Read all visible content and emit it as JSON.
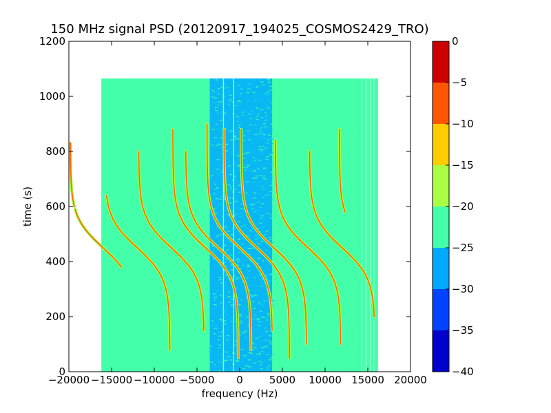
{
  "chart_data": {
    "type": "heatmap",
    "title": "150 MHz signal PSD (20120917_194025_COSMOS2429_TRO)",
    "xlabel": "frequency (Hz)",
    "ylabel": "time (s)",
    "xlim": [
      -20000,
      20000
    ],
    "ylim": [
      0,
      1200
    ],
    "x_ticks": [
      -20000,
      -15000,
      -10000,
      -5000,
      0,
      5000,
      10000,
      15000,
      20000
    ],
    "y_ticks": [
      0,
      200,
      400,
      600,
      800,
      1000,
      1200
    ],
    "x_tick_labels": [
      "−20000",
      "−15000",
      "−10000",
      "−5000",
      "0",
      "5000",
      "10000",
      "15000",
      "20000"
    ],
    "y_tick_labels": [
      "0",
      "200",
      "400",
      "600",
      "800",
      "1000",
      "1200"
    ],
    "data_extent": {
      "x": [
        -16200,
        16200
      ],
      "y": [
        0,
        1065
      ]
    },
    "background_level": -22.5,
    "noisy_band": {
      "x": [
        -3500,
        3800
      ],
      "level": -27.5
    },
    "vertical_lines": [
      -1900,
      -700,
      14300,
      14800,
      15300,
      15700
    ],
    "traces": [
      {
        "offset": -16000,
        "t_start": 380,
        "t_end": 590
      },
      {
        "offset": -16000,
        "t_start": 600,
        "t_end": 830
      },
      {
        "offset": -12000,
        "t_start": 80,
        "t_end": 640
      },
      {
        "offset": -8000,
        "t_start": 150,
        "t_end": 800
      },
      {
        "offset": -4000,
        "t_start": 50,
        "t_end": 880
      },
      {
        "offset": -2500,
        "t_start": 80,
        "t_end": 800
      },
      {
        "offset": 0,
        "t_start": 150,
        "t_end": 900
      },
      {
        "offset": 2000,
        "t_start": 50,
        "t_end": 880
      },
      {
        "offset": 4000,
        "t_start": 100,
        "t_end": 880
      },
      {
        "offset": 8000,
        "t_start": 100,
        "t_end": 840
      },
      {
        "offset": 12000,
        "t_start": 200,
        "t_end": 800
      },
      {
        "offset": 15500,
        "t_start": 580,
        "t_end": 880
      }
    ],
    "colorbar": {
      "min": -40,
      "max": 0,
      "ticks": [
        0,
        -5,
        -10,
        -15,
        -20,
        -25,
        -30,
        -35,
        -40
      ],
      "tick_labels": [
        "0",
        "−5",
        "−10",
        "−15",
        "−20",
        "−25",
        "−30",
        "−35",
        "−40"
      ],
      "levels": [
        {
          "from": -40,
          "to": -35,
          "color": "#0000cc"
        },
        {
          "from": -35,
          "to": -30,
          "color": "#0044ff"
        },
        {
          "from": -30,
          "to": -25,
          "color": "#00aaff"
        },
        {
          "from": -25,
          "to": -20,
          "color": "#44ffaa"
        },
        {
          "from": -20,
          "to": -15,
          "color": "#aaff44"
        },
        {
          "from": -15,
          "to": -10,
          "color": "#ffcc00"
        },
        {
          "from": -10,
          "to": -5,
          "color": "#ff5500"
        },
        {
          "from": -5,
          "to": 0,
          "color": "#cc0000"
        }
      ]
    }
  }
}
